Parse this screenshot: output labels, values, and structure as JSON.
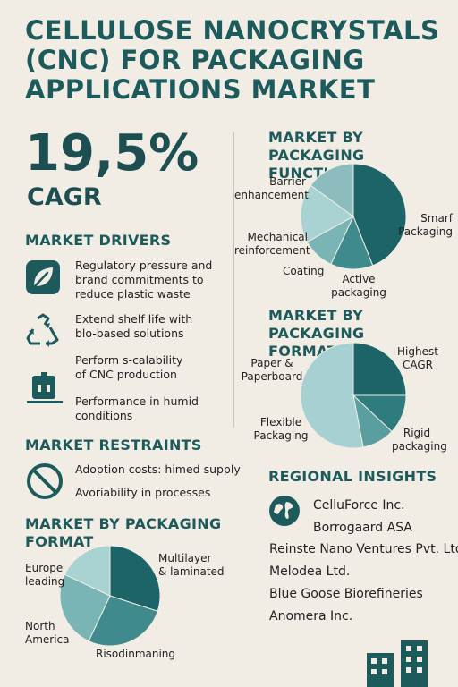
{
  "title": "CELLULOSE NANOCRYSTALS (CNC) FOR PACKAGING APPLICATIONS MARKET",
  "headline": {
    "value": "19,5%",
    "label": "CAGR"
  },
  "drivers": {
    "heading": "MARKET DRIVERS",
    "items": [
      {
        "icon": "leaf-icon",
        "text": [
          "Regulatory pressure and",
          "brand commitments to",
          "reduce plastic waste"
        ]
      },
      {
        "icon": "recycle-icon",
        "text": [
          "Extend shelf life with",
          "blo-based solutions"
        ]
      },
      {
        "icon": "",
        "text": [
          "Perform s-calability",
          "of CNC production"
        ]
      },
      {
        "icon": "factory-icon",
        "text": [
          "Performance in humid",
          "conditions"
        ]
      }
    ]
  },
  "restraints": {
    "heading": "MARKET RESTRAINTS",
    "icon": "prohibited-icon",
    "items": [
      "Adoption costs: himed supply",
      "Avoriability in processes"
    ]
  },
  "function_chart": {
    "heading": [
      "MARKET BY PACKAGING",
      "FUNCTION"
    ],
    "chart_data": {
      "type": "pie",
      "categories": [
        "Smarf Packaging",
        "Active packaging",
        "Coating",
        "Mechanical reinforcement",
        "Barrier enhancement"
      ],
      "values": [
        44,
        13,
        10,
        18,
        15
      ],
      "colors": [
        "#1c6468",
        "#3f8a8c",
        "#7ab5b6",
        "#a9d2d3",
        "#8cbcbd"
      ]
    },
    "labels": {
      "barrier": [
        "Barrier",
        "enhancement"
      ],
      "smart": [
        "Smarf",
        "Packaging"
      ],
      "mechanical": [
        "Mechanical",
        "reinforcement"
      ],
      "coating": "Coating",
      "active": [
        "Active",
        "packaging"
      ]
    }
  },
  "format_chart_right": {
    "heading": [
      "MARKET BY PACKAGING",
      "FORMAT"
    ],
    "chart_data": {
      "type": "pie",
      "categories": [
        "Highest CAGR",
        "Rigid packaging",
        "Flexible Packaging",
        "Paper & Paperboard"
      ],
      "values": [
        25,
        12,
        10,
        53
      ],
      "colors": [
        "#1c6468",
        "#2f7c7e",
        "#5b9ea0",
        "#a6d0d1"
      ]
    },
    "labels": {
      "highest": [
        "Highest",
        "CAGR"
      ],
      "paper": [
        "Paper &",
        "Paperboard"
      ],
      "flexible": [
        "Flexible",
        "Packaging"
      ],
      "rigid": [
        "Rigid",
        "packaging"
      ]
    }
  },
  "format_chart_left": {
    "heading": [
      "MARKET BY PACKAGING",
      "FORMAT"
    ],
    "chart_data": {
      "type": "pie",
      "categories": [
        "Multilayer & laminated",
        "Risodinmaning",
        "North America",
        "Europe leading"
      ],
      "values": [
        30,
        27,
        25,
        18
      ],
      "colors": [
        "#1c6468",
        "#3f8a8c",
        "#7ab5b6",
        "#a9d2d3"
      ]
    },
    "labels": {
      "europe": [
        "Europe",
        "leading"
      ],
      "multilayer": [
        "Multilayer",
        "& laminated"
      ],
      "north": [
        "North",
        "America"
      ],
      "riso": "Risodinmaning"
    }
  },
  "regional": {
    "heading": "REGIONAL INSIGHTS",
    "icon": "globe-icon",
    "companies": [
      "CelluForce Inc.",
      "Borrogaard ASA",
      "Reinste Nano Ventures Pvt. Ltd.",
      "Melodea Ltd.",
      "Blue Goose Biorefineries",
      "Anomera Inc."
    ]
  }
}
